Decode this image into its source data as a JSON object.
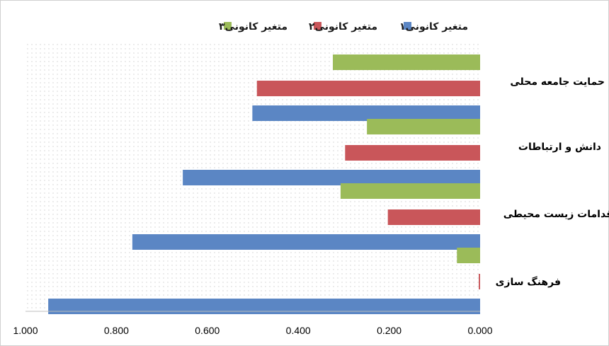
{
  "chart_data": {
    "type": "bar",
    "orientation": "horizontal",
    "x_axis_reversed": true,
    "categories": [
      "حمایت جامعه محلی",
      "دانش و ارتباطات",
      "اقدامات زیست محیطی",
      "فرهنگ سازی"
    ],
    "series": [
      {
        "name": "متغیر کانونی۱",
        "color": "#5B86C4",
        "values": [
          0.501,
          0.654,
          0.765,
          0.95
        ]
      },
      {
        "name": "متغیر کانونی۲",
        "color": "#C9565A",
        "values": [
          0.491,
          0.297,
          0.203,
          0.003
        ]
      },
      {
        "name": "متغیر کانونی۳",
        "color": "#9BBB59",
        "values": [
          0.324,
          0.249,
          0.307,
          0.051
        ]
      }
    ],
    "xlim": [
      0,
      1
    ],
    "ticks": [
      "0.000",
      "0.200",
      "0.400",
      "0.600",
      "0.800",
      "1.000"
    ],
    "tick_values": [
      0,
      0.2,
      0.4,
      0.6,
      0.8,
      1.0
    ],
    "legend_position": "top",
    "grid": false
  }
}
